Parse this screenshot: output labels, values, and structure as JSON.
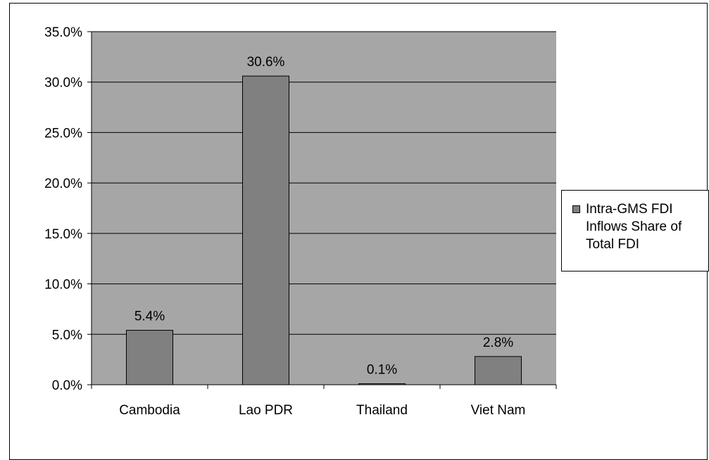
{
  "chart_data": {
    "type": "bar",
    "title": "",
    "xlabel": "",
    "ylabel": "",
    "categories": [
      "Cambodia",
      "Lao PDR",
      "Thailand",
      "Viet Nam"
    ],
    "series": [
      {
        "name": "Intra-GMS FDI Inflows Share of Total FDI",
        "values": [
          5.4,
          30.6,
          0.1,
          2.8
        ],
        "labels": [
          "5.4%",
          "30.6%",
          "0.1%",
          "2.8%"
        ]
      }
    ],
    "ylim": [
      0,
      35
    ],
    "yticks": [
      0,
      5,
      10,
      15,
      20,
      25,
      30,
      35
    ],
    "ytick_labels": [
      "0.0%",
      "5.0%",
      "10.0%",
      "15.0%",
      "20.0%",
      "25.0%",
      "30.0%",
      "35.0%"
    ],
    "grid": true,
    "legend_position": "right"
  },
  "colors": {
    "plot_background": "#a6a6a6",
    "bar_fill": "#808080",
    "bar_stroke": "#000000",
    "gridline": "#000000",
    "legend_swatch": "#808080"
  }
}
